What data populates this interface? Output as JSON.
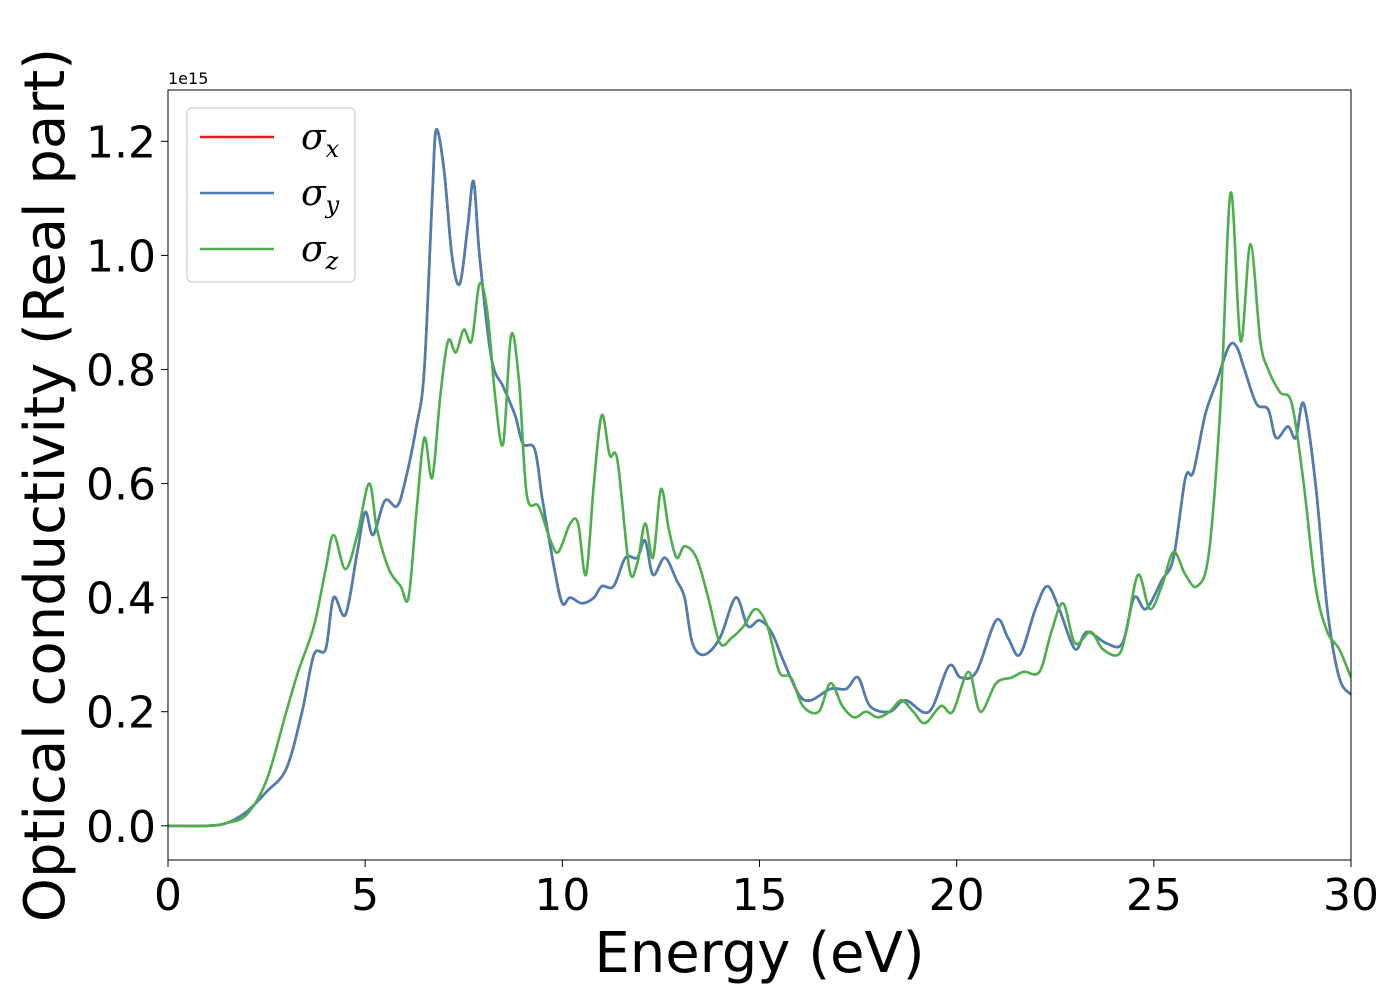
{
  "chart_data": {
    "type": "line",
    "xlabel": "Energy (eV)",
    "ylabel": "Optical conductivity (Real part)",
    "y_offset_label": "1e15",
    "xlim": [
      0,
      30
    ],
    "ylim": [
      -0.06,
      1.29
    ],
    "x_ticks": [
      0,
      5,
      10,
      15,
      20,
      25,
      30
    ],
    "y_ticks": [
      0.0,
      0.2,
      0.4,
      0.6,
      0.8,
      1.0,
      1.2
    ],
    "y_tick_labels": [
      "0.0",
      "0.2",
      "0.4",
      "0.6",
      "0.8",
      "1.0",
      "1.2"
    ],
    "legend_position": "upper-left",
    "grid": false,
    "series": [
      {
        "name": "σ_x",
        "symbol": "σ",
        "subscript": "x",
        "color": "#e41a1c",
        "points": [
          [
            0,
            0
          ],
          [
            1,
            0.0
          ],
          [
            1.5,
            0.005
          ],
          [
            2,
            0.025
          ],
          [
            2.5,
            0.06
          ],
          [
            3,
            0.1
          ],
          [
            3.4,
            0.2
          ],
          [
            3.7,
            0.3
          ],
          [
            4,
            0.31
          ],
          [
            4.2,
            0.4
          ],
          [
            4.5,
            0.37
          ],
          [
            4.8,
            0.48
          ],
          [
            5,
            0.55
          ],
          [
            5.2,
            0.51
          ],
          [
            5.5,
            0.57
          ],
          [
            5.8,
            0.56
          ],
          [
            6,
            0.6
          ],
          [
            6.3,
            0.7
          ],
          [
            6.5,
            0.8
          ],
          [
            6.7,
            1.1
          ],
          [
            6.8,
            1.22
          ],
          [
            7,
            1.15
          ],
          [
            7.2,
            1.0
          ],
          [
            7.4,
            0.95
          ],
          [
            7.6,
            1.05
          ],
          [
            7.75,
            1.13
          ],
          [
            7.9,
            1.0
          ],
          [
            8.2,
            0.82
          ],
          [
            8.5,
            0.77
          ],
          [
            8.8,
            0.72
          ],
          [
            9,
            0.67
          ],
          [
            9.3,
            0.66
          ],
          [
            9.5,
            0.57
          ],
          [
            9.8,
            0.45
          ],
          [
            10,
            0.39
          ],
          [
            10.2,
            0.4
          ],
          [
            10.5,
            0.39
          ],
          [
            10.8,
            0.4
          ],
          [
            11,
            0.42
          ],
          [
            11.3,
            0.42
          ],
          [
            11.6,
            0.47
          ],
          [
            11.9,
            0.47
          ],
          [
            12.1,
            0.5
          ],
          [
            12.3,
            0.44
          ],
          [
            12.6,
            0.47
          ],
          [
            12.9,
            0.43
          ],
          [
            13.1,
            0.4
          ],
          [
            13.3,
            0.32
          ],
          [
            13.6,
            0.3
          ],
          [
            14,
            0.33
          ],
          [
            14.4,
            0.4
          ],
          [
            14.7,
            0.35
          ],
          [
            15,
            0.36
          ],
          [
            15.3,
            0.34
          ],
          [
            15.6,
            0.29
          ],
          [
            16,
            0.23
          ],
          [
            16.3,
            0.22
          ],
          [
            16.8,
            0.24
          ],
          [
            17.2,
            0.24
          ],
          [
            17.5,
            0.26
          ],
          [
            17.8,
            0.21
          ],
          [
            18.3,
            0.2
          ],
          [
            18.7,
            0.22
          ],
          [
            19.3,
            0.2
          ],
          [
            19.8,
            0.28
          ],
          [
            20.1,
            0.26
          ],
          [
            20.5,
            0.27
          ],
          [
            21,
            0.36
          ],
          [
            21.3,
            0.33
          ],
          [
            21.6,
            0.3
          ],
          [
            22,
            0.38
          ],
          [
            22.3,
            0.42
          ],
          [
            22.6,
            0.38
          ],
          [
            23,
            0.31
          ],
          [
            23.3,
            0.34
          ],
          [
            23.8,
            0.32
          ],
          [
            24.2,
            0.32
          ],
          [
            24.5,
            0.4
          ],
          [
            24.8,
            0.38
          ],
          [
            25.2,
            0.43
          ],
          [
            25.5,
            0.47
          ],
          [
            25.8,
            0.61
          ],
          [
            26,
            0.62
          ],
          [
            26.3,
            0.72
          ],
          [
            26.6,
            0.78
          ],
          [
            26.9,
            0.84
          ],
          [
            27.1,
            0.84
          ],
          [
            27.3,
            0.8
          ],
          [
            27.6,
            0.74
          ],
          [
            27.9,
            0.73
          ],
          [
            28.1,
            0.68
          ],
          [
            28.4,
            0.7
          ],
          [
            28.6,
            0.68
          ],
          [
            28.8,
            0.74
          ],
          [
            29.1,
            0.6
          ],
          [
            29.4,
            0.38
          ],
          [
            29.7,
            0.26
          ],
          [
            30,
            0.23
          ]
        ]
      },
      {
        "name": "σ_y",
        "symbol": "σ",
        "subscript": "y",
        "color": "#4a7fb5",
        "points": [
          [
            0,
            0
          ],
          [
            1,
            0.0
          ],
          [
            1.5,
            0.005
          ],
          [
            2,
            0.025
          ],
          [
            2.5,
            0.06
          ],
          [
            3,
            0.1
          ],
          [
            3.4,
            0.2
          ],
          [
            3.7,
            0.3
          ],
          [
            4,
            0.31
          ],
          [
            4.2,
            0.4
          ],
          [
            4.5,
            0.37
          ],
          [
            4.8,
            0.48
          ],
          [
            5,
            0.55
          ],
          [
            5.2,
            0.51
          ],
          [
            5.5,
            0.57
          ],
          [
            5.8,
            0.56
          ],
          [
            6,
            0.6
          ],
          [
            6.3,
            0.7
          ],
          [
            6.5,
            0.8
          ],
          [
            6.7,
            1.1
          ],
          [
            6.8,
            1.22
          ],
          [
            7,
            1.15
          ],
          [
            7.2,
            1.0
          ],
          [
            7.4,
            0.95
          ],
          [
            7.6,
            1.05
          ],
          [
            7.75,
            1.13
          ],
          [
            7.9,
            1.0
          ],
          [
            8.2,
            0.82
          ],
          [
            8.5,
            0.77
          ],
          [
            8.8,
            0.72
          ],
          [
            9,
            0.67
          ],
          [
            9.3,
            0.66
          ],
          [
            9.5,
            0.57
          ],
          [
            9.8,
            0.45
          ],
          [
            10,
            0.39
          ],
          [
            10.2,
            0.4
          ],
          [
            10.5,
            0.39
          ],
          [
            10.8,
            0.4
          ],
          [
            11,
            0.42
          ],
          [
            11.3,
            0.42
          ],
          [
            11.6,
            0.47
          ],
          [
            11.9,
            0.47
          ],
          [
            12.1,
            0.5
          ],
          [
            12.3,
            0.44
          ],
          [
            12.6,
            0.47
          ],
          [
            12.9,
            0.43
          ],
          [
            13.1,
            0.4
          ],
          [
            13.3,
            0.32
          ],
          [
            13.6,
            0.3
          ],
          [
            14,
            0.33
          ],
          [
            14.4,
            0.4
          ],
          [
            14.7,
            0.35
          ],
          [
            15,
            0.36
          ],
          [
            15.3,
            0.34
          ],
          [
            15.6,
            0.29
          ],
          [
            16,
            0.23
          ],
          [
            16.3,
            0.22
          ],
          [
            16.8,
            0.24
          ],
          [
            17.2,
            0.24
          ],
          [
            17.5,
            0.26
          ],
          [
            17.8,
            0.21
          ],
          [
            18.3,
            0.2
          ],
          [
            18.7,
            0.22
          ],
          [
            19.3,
            0.2
          ],
          [
            19.8,
            0.28
          ],
          [
            20.1,
            0.26
          ],
          [
            20.5,
            0.27
          ],
          [
            21,
            0.36
          ],
          [
            21.3,
            0.33
          ],
          [
            21.6,
            0.3
          ],
          [
            22,
            0.38
          ],
          [
            22.3,
            0.42
          ],
          [
            22.6,
            0.38
          ],
          [
            23,
            0.31
          ],
          [
            23.3,
            0.34
          ],
          [
            23.8,
            0.32
          ],
          [
            24.2,
            0.32
          ],
          [
            24.5,
            0.4
          ],
          [
            24.8,
            0.38
          ],
          [
            25.2,
            0.43
          ],
          [
            25.5,
            0.47
          ],
          [
            25.8,
            0.61
          ],
          [
            26,
            0.62
          ],
          [
            26.3,
            0.72
          ],
          [
            26.6,
            0.78
          ],
          [
            26.9,
            0.84
          ],
          [
            27.1,
            0.84
          ],
          [
            27.3,
            0.8
          ],
          [
            27.6,
            0.74
          ],
          [
            27.9,
            0.73
          ],
          [
            28.1,
            0.68
          ],
          [
            28.4,
            0.7
          ],
          [
            28.6,
            0.68
          ],
          [
            28.8,
            0.74
          ],
          [
            29.1,
            0.6
          ],
          [
            29.4,
            0.38
          ],
          [
            29.7,
            0.26
          ],
          [
            30,
            0.23
          ]
        ]
      },
      {
        "name": "σ_z",
        "symbol": "σ",
        "subscript": "z",
        "color": "#4daf4a",
        "points": [
          [
            0,
            0
          ],
          [
            1,
            0.0
          ],
          [
            1.5,
            0.005
          ],
          [
            2,
            0.02
          ],
          [
            2.5,
            0.08
          ],
          [
            3,
            0.2
          ],
          [
            3.3,
            0.27
          ],
          [
            3.7,
            0.35
          ],
          [
            4,
            0.45
          ],
          [
            4.2,
            0.51
          ],
          [
            4.5,
            0.45
          ],
          [
            4.8,
            0.51
          ],
          [
            5.1,
            0.6
          ],
          [
            5.3,
            0.52
          ],
          [
            5.6,
            0.45
          ],
          [
            5.9,
            0.42
          ],
          [
            6.1,
            0.4
          ],
          [
            6.3,
            0.55
          ],
          [
            6.5,
            0.68
          ],
          [
            6.7,
            0.61
          ],
          [
            6.9,
            0.75
          ],
          [
            7.1,
            0.85
          ],
          [
            7.3,
            0.83
          ],
          [
            7.5,
            0.87
          ],
          [
            7.7,
            0.85
          ],
          [
            7.9,
            0.95
          ],
          [
            8.1,
            0.9
          ],
          [
            8.3,
            0.75
          ],
          [
            8.5,
            0.67
          ],
          [
            8.7,
            0.86
          ],
          [
            8.9,
            0.78
          ],
          [
            9.1,
            0.58
          ],
          [
            9.4,
            0.56
          ],
          [
            9.7,
            0.5
          ],
          [
            9.9,
            0.48
          ],
          [
            10.2,
            0.53
          ],
          [
            10.4,
            0.53
          ],
          [
            10.6,
            0.44
          ],
          [
            10.8,
            0.6
          ],
          [
            11,
            0.72
          ],
          [
            11.2,
            0.65
          ],
          [
            11.4,
            0.64
          ],
          [
            11.7,
            0.45
          ],
          [
            11.9,
            0.46
          ],
          [
            12.1,
            0.53
          ],
          [
            12.3,
            0.47
          ],
          [
            12.5,
            0.59
          ],
          [
            12.7,
            0.52
          ],
          [
            12.9,
            0.47
          ],
          [
            13.1,
            0.49
          ],
          [
            13.4,
            0.47
          ],
          [
            13.7,
            0.4
          ],
          [
            14,
            0.32
          ],
          [
            14.3,
            0.33
          ],
          [
            14.6,
            0.35
          ],
          [
            14.9,
            0.38
          ],
          [
            15.2,
            0.35
          ],
          [
            15.5,
            0.27
          ],
          [
            15.8,
            0.26
          ],
          [
            16.1,
            0.21
          ],
          [
            16.5,
            0.2
          ],
          [
            16.8,
            0.25
          ],
          [
            17.1,
            0.21
          ],
          [
            17.4,
            0.19
          ],
          [
            17.7,
            0.2
          ],
          [
            18,
            0.19
          ],
          [
            18.3,
            0.2
          ],
          [
            18.6,
            0.22
          ],
          [
            18.9,
            0.2
          ],
          [
            19.2,
            0.18
          ],
          [
            19.6,
            0.21
          ],
          [
            19.9,
            0.2
          ],
          [
            20.3,
            0.27
          ],
          [
            20.6,
            0.2
          ],
          [
            21,
            0.25
          ],
          [
            21.4,
            0.26
          ],
          [
            21.7,
            0.27
          ],
          [
            22.1,
            0.27
          ],
          [
            22.4,
            0.34
          ],
          [
            22.7,
            0.39
          ],
          [
            23,
            0.32
          ],
          [
            23.4,
            0.34
          ],
          [
            23.7,
            0.31
          ],
          [
            24.1,
            0.3
          ],
          [
            24.3,
            0.34
          ],
          [
            24.6,
            0.44
          ],
          [
            24.9,
            0.38
          ],
          [
            25.2,
            0.42
          ],
          [
            25.5,
            0.48
          ],
          [
            25.8,
            0.44
          ],
          [
            26.1,
            0.42
          ],
          [
            26.4,
            0.48
          ],
          [
            26.7,
            0.75
          ],
          [
            26.95,
            1.11
          ],
          [
            27.2,
            0.85
          ],
          [
            27.45,
            1.02
          ],
          [
            27.7,
            0.85
          ],
          [
            27.9,
            0.8
          ],
          [
            28.2,
            0.76
          ],
          [
            28.5,
            0.74
          ],
          [
            28.8,
            0.6
          ],
          [
            29.1,
            0.42
          ],
          [
            29.4,
            0.34
          ],
          [
            29.7,
            0.31
          ],
          [
            30,
            0.26
          ]
        ]
      }
    ]
  }
}
